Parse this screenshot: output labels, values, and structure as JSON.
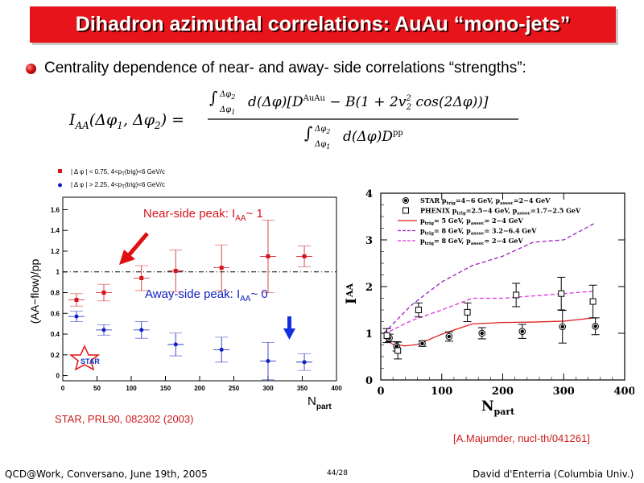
{
  "slide": {
    "title": "Dihadron azimuthal correlations: AuAu “mono-jets”",
    "bullet": "Centrality dependence of near- and away- side correlations “strengths”:",
    "formula": {
      "lhs": "I",
      "lhs_sub": "AA",
      "lhs_args": "(Δφ",
      "lhs_args_1": "1",
      "lhs_args_mid": ", Δφ",
      "lhs_args_2": "2",
      "lhs_args_end": ") =",
      "num": "d(Δφ)[D",
      "num_sup": "AuAu",
      "num_rest": " − B(1 + 2v",
      "num_v2sub": "2",
      "num_v2sup": "2",
      "num_end": " cos(2Δφ))]",
      "den": "d(Δφ)D",
      "den_sup": "pp",
      "int_upper": "Δφ",
      "int_upper_sub": "2",
      "int_lower": "Δφ",
      "int_lower_sub": "1"
    },
    "citation_left": "STAR, PRL90, 082302 (2003)",
    "citation_right": "[A.Majumder, nucl-th/041261]",
    "footer_left": "QCD@Work, Conversano, June 19th, 2005",
    "footer_center": "44/28",
    "footer_right": "David d'Enterria (Columbia Univ.)"
  },
  "colors": {
    "accent": "#e8141c",
    "citation": "#cc1a1a",
    "near": "#d4141c",
    "away": "#1020c0",
    "arrow_red": "#e01010",
    "arrow_blue": "#1030e0",
    "pink": "#e030e0",
    "purple": "#a020c0",
    "red_line": "#e02020"
  },
  "chart_data": [
    {
      "type": "scatter",
      "ylabel": "(AA−flow)/pp",
      "xlabel": "N",
      "xlabel_sub": "part",
      "xlim": [
        0,
        400
      ],
      "ylim": [
        -0.05,
        1.72
      ],
      "xticks": [
        0,
        50,
        100,
        150,
        200,
        250,
        300,
        350,
        400
      ],
      "yticks": [
        0,
        0.2,
        0.4,
        0.6,
        0.8,
        1,
        1.2,
        1.4,
        1.6
      ],
      "reference_line": 1,
      "legend": [
        {
          "label": "| Δ φ | < 0.75, 4<p",
          "sub": "T",
          "rest": "(trig)<6 GeV/c",
          "marker": "square",
          "color": "#d4141c"
        },
        {
          "label": "| Δ φ | > 2.25, 4<p",
          "sub": "T",
          "rest": "(trig)<6 GeV/c",
          "marker": "circle",
          "color": "#1020c0"
        }
      ],
      "annotations": [
        {
          "text": "Near-side peak: I",
          "sub": "AA",
          "rest": "~ 1",
          "color": "#d4141c"
        },
        {
          "text": "Away-side peak: I",
          "sub": "AA",
          "rest": "~ 0",
          "color": "#1020c0"
        }
      ],
      "logo": "STAR",
      "series": [
        {
          "name": "| Δ φ | < 0.75",
          "color": "#d4141c",
          "marker": "square",
          "x": [
            20,
            60,
            115,
            165,
            232,
            300,
            353
          ],
          "y": [
            0.73,
            0.8,
            0.94,
            1.01,
            1.04,
            1.15,
            1.15
          ],
          "err": [
            0.06,
            0.08,
            0.12,
            0.2,
            0.22,
            0.35,
            0.1
          ]
        },
        {
          "name": "| Δ φ | > 2.25",
          "color": "#1020c0",
          "marker": "circle",
          "x": [
            20,
            60,
            115,
            165,
            232,
            300,
            353
          ],
          "y": [
            0.57,
            0.44,
            0.44,
            0.3,
            0.25,
            0.14,
            0.13
          ],
          "err": [
            0.05,
            0.05,
            0.08,
            0.11,
            0.12,
            0.18,
            0.08
          ]
        }
      ]
    },
    {
      "type": "line",
      "ylabel": "I",
      "ylabel_sub": "AA",
      "xlabel": "N",
      "xlabel_sub": "part",
      "xlim": [
        0,
        400
      ],
      "ylim": [
        0,
        4
      ],
      "xticks": [
        0,
        100,
        200,
        300,
        400
      ],
      "yticks": [
        0,
        1,
        2,
        3,
        4
      ],
      "legend": [
        {
          "label": "STAR p",
          "s1": "trig",
          "m1": "=4−6 GeV, p",
          "s2": "assoc",
          "m2": "=2−4 GeV",
          "style": "filled-circle"
        },
        {
          "label": "PHENIX p",
          "s1": "trig",
          "m1": "=2.5−4 GeV, p",
          "s2": "assoc",
          "m2": "=1.7−2.5 GeV",
          "style": "open-square"
        },
        {
          "label": "p",
          "s1": "trig",
          "m1": "= 5 GeV, p",
          "s2": "assoc",
          "m2": "= 2−4 GeV",
          "style": "solid-red"
        },
        {
          "label": "p",
          "s1": "trig",
          "m1": "= 8 GeV, p",
          "s2": "assoc",
          "m2": "= 3.2−6.4 GeV",
          "style": "dash-purple"
        },
        {
          "label": "p",
          "s1": "trig",
          "m1": "= 8 GeV, p",
          "s2": "assoc",
          "m2": "= 2−4 GeV",
          "style": "dash-pink"
        }
      ],
      "series": [
        {
          "name": "STAR p_trig=4−6 GeV, p_assoc=2−4 GeV",
          "marker": "filled-circle",
          "x": [
            14,
            26,
            68,
            112,
            166,
            232,
            298,
            352
          ],
          "y": [
            0.9,
            0.72,
            0.78,
            0.93,
            1.0,
            1.04,
            1.14,
            1.15
          ],
          "err": [
            0.08,
            0.1,
            0.06,
            0.1,
            0.12,
            0.15,
            0.35,
            0.18
          ]
        },
        {
          "name": "PHENIX p_trig=2.5−4 GeV, p_assoc=1.7−2.5 GeV",
          "marker": "open-square",
          "x": [
            10,
            28,
            62,
            142,
            222,
            296,
            348
          ],
          "y": [
            0.95,
            0.63,
            1.5,
            1.45,
            1.82,
            1.85,
            1.68
          ],
          "err": [
            0.15,
            0.18,
            0.15,
            0.2,
            0.25,
            0.35,
            0.35
          ]
        },
        {
          "name": "p_trig = 5 GeV, p_assoc = 2−4 GeV",
          "line": "solid",
          "color": "#e02020",
          "x": [
            8,
            20,
            40,
            60,
            100,
            150,
            200,
            250,
            300,
            350
          ],
          "y": [
            0.88,
            0.76,
            0.73,
            0.76,
            0.98,
            1.2,
            1.23,
            1.24,
            1.26,
            1.33
          ]
        },
        {
          "name": "p_trig = 8 GeV, p_assoc = 3.2−6.4 GeV",
          "line": "dashed",
          "color": "#a020c0",
          "x": [
            5,
            50,
            100,
            150,
            200,
            250,
            300,
            350
          ],
          "y": [
            1.0,
            1.6,
            2.1,
            2.45,
            2.65,
            2.95,
            3.0,
            3.35
          ]
        },
        {
          "name": "p_trig = 8 GeV, p_assoc = 2−4 GeV",
          "line": "dashed",
          "color": "#e030e0",
          "x": [
            5,
            50,
            100,
            150,
            200,
            250,
            300,
            350
          ],
          "y": [
            0.98,
            1.27,
            1.5,
            1.75,
            1.75,
            1.8,
            1.85,
            1.9
          ]
        }
      ]
    }
  ]
}
